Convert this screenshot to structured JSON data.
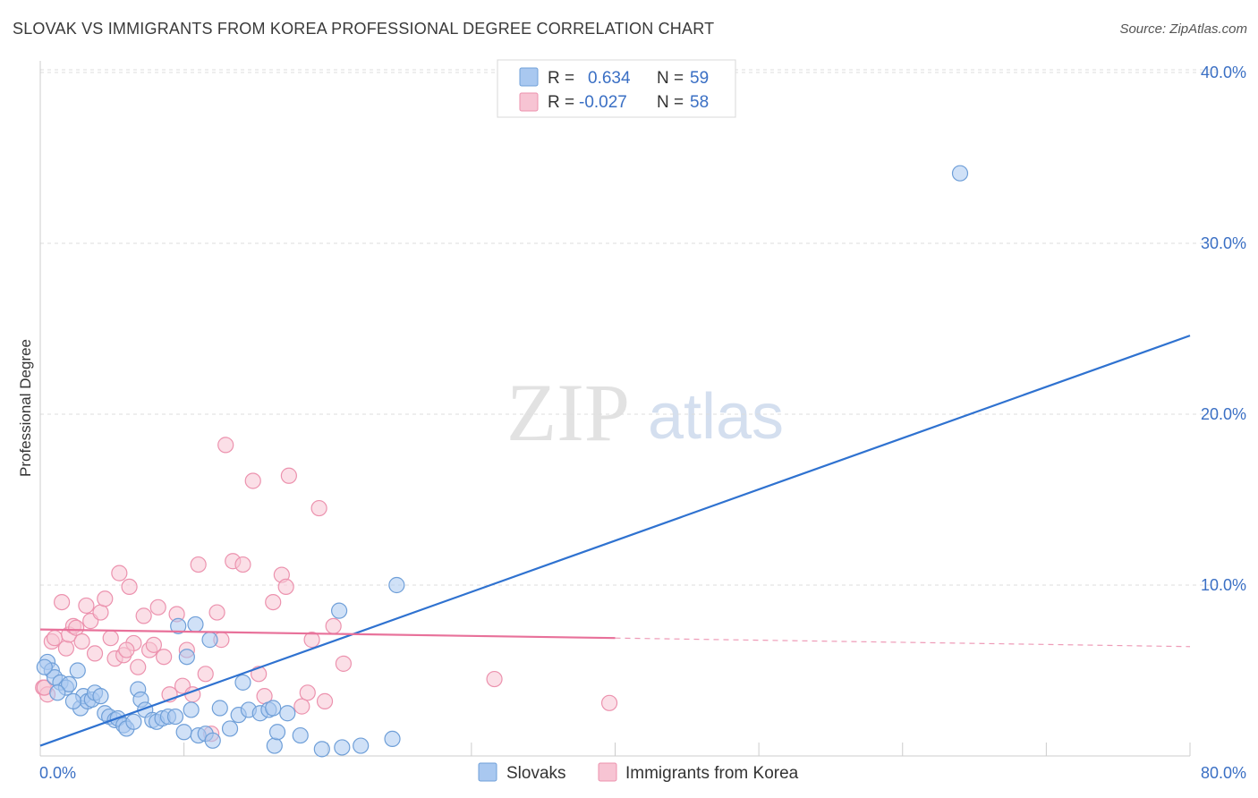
{
  "title": "SLOVAK VS IMMIGRANTS FROM KOREA PROFESSIONAL DEGREE CORRELATION CHART",
  "source": "Source: ZipAtlas.com",
  "watermark_zip": "ZIP",
  "watermark_atlas": "atlas",
  "colors": {
    "blue_fill": "#a9c8f0",
    "blue_stroke": "#6f9fd8",
    "blue_line": "#2f72d0",
    "pink_fill": "#f7c4d3",
    "pink_stroke": "#ec92ae",
    "pink_line": "#e8719a",
    "tick_text": "#3a6fc4",
    "grid": "#dddddd"
  },
  "legend": {
    "row1": {
      "r_label": "R =",
      "r_value": "0.634",
      "n_label": "N =",
      "n_value": "59"
    },
    "row2": {
      "r_label": "R =",
      "r_value": "-0.027",
      "n_label": "N =",
      "n_value": "58"
    }
  },
  "bottom_legend": {
    "series1": "Slovaks",
    "series2": "Immigrants from Korea"
  },
  "chart_data": {
    "type": "scatter",
    "title": "SLOVAK VS IMMIGRANTS FROM KOREA PROFESSIONAL DEGREE CORRELATION CHART",
    "xlabel": "",
    "ylabel": "Professional Degree",
    "xlim": [
      0,
      80
    ],
    "ylim": [
      0,
      42
    ],
    "x_tick_labels": [
      "0.0%",
      "80.0%"
    ],
    "y_ticks": [
      10,
      20,
      30,
      40
    ],
    "y_tick_labels": [
      "10.0%",
      "20.0%",
      "30.0%",
      "40.0%"
    ],
    "series": [
      {
        "name": "Slovaks",
        "r": 0.634,
        "n": 59,
        "trend": {
          "x": [
            0,
            80
          ],
          "y": [
            0.6,
            24.6
          ]
        },
        "points": [
          [
            0.5,
            5.5
          ],
          [
            0.8,
            5.0
          ],
          [
            1.0,
            4.6
          ],
          [
            1.4,
            4.3
          ],
          [
            1.8,
            4.0
          ],
          [
            2.0,
            4.2
          ],
          [
            1.2,
            3.7
          ],
          [
            2.6,
            5.0
          ],
          [
            2.8,
            2.8
          ],
          [
            3.0,
            3.5
          ],
          [
            3.3,
            3.2
          ],
          [
            3.6,
            3.3
          ],
          [
            3.8,
            3.7
          ],
          [
            4.2,
            3.5
          ],
          [
            4.5,
            2.5
          ],
          [
            4.8,
            2.3
          ],
          [
            5.2,
            2.1
          ],
          [
            5.4,
            2.2
          ],
          [
            5.8,
            1.8
          ],
          [
            6.0,
            1.6
          ],
          [
            6.5,
            2.0
          ],
          [
            6.8,
            3.9
          ],
          [
            7.0,
            3.3
          ],
          [
            7.3,
            2.7
          ],
          [
            7.8,
            2.1
          ],
          [
            8.1,
            2.0
          ],
          [
            8.5,
            2.2
          ],
          [
            8.9,
            2.3
          ],
          [
            9.4,
            2.3
          ],
          [
            10.0,
            1.4
          ],
          [
            10.5,
            2.7
          ],
          [
            11.0,
            1.2
          ],
          [
            11.5,
            1.3
          ],
          [
            12.0,
            0.9
          ],
          [
            12.5,
            2.8
          ],
          [
            13.2,
            1.6
          ],
          [
            13.8,
            2.4
          ],
          [
            14.5,
            2.7
          ],
          [
            15.3,
            2.5
          ],
          [
            15.9,
            2.7
          ],
          [
            16.3,
            0.6
          ],
          [
            16.5,
            1.4
          ],
          [
            17.2,
            2.5
          ],
          [
            18.1,
            1.2
          ],
          [
            19.6,
            0.4
          ],
          [
            21.0,
            0.5
          ],
          [
            22.3,
            0.6
          ],
          [
            24.5,
            1.0
          ],
          [
            9.6,
            7.6
          ],
          [
            10.8,
            7.7
          ],
          [
            11.8,
            6.8
          ],
          [
            10.2,
            5.8
          ],
          [
            14.1,
            4.3
          ],
          [
            16.2,
            2.8
          ],
          [
            20.8,
            8.5
          ],
          [
            24.8,
            10.0
          ],
          [
            64.0,
            34.1
          ],
          [
            0.3,
            5.2
          ],
          [
            2.3,
            3.2
          ]
        ]
      },
      {
        "name": "Immigrants from Korea",
        "r": -0.027,
        "n": 58,
        "trend": {
          "x": [
            0,
            40
          ],
          "y": [
            7.4,
            6.9
          ]
        },
        "trend_dashed": {
          "x": [
            40,
            80
          ],
          "y": [
            6.9,
            6.4
          ]
        },
        "points": [
          [
            0.2,
            4.0
          ],
          [
            0.5,
            3.6
          ],
          [
            0.8,
            6.7
          ],
          [
            1.0,
            6.9
          ],
          [
            1.5,
            9.0
          ],
          [
            1.8,
            6.3
          ],
          [
            2.0,
            7.1
          ],
          [
            2.3,
            7.6
          ],
          [
            2.5,
            7.5
          ],
          [
            2.9,
            6.7
          ],
          [
            3.2,
            8.8
          ],
          [
            3.5,
            7.9
          ],
          [
            3.8,
            6.0
          ],
          [
            4.2,
            8.4
          ],
          [
            4.5,
            9.2
          ],
          [
            4.9,
            6.9
          ],
          [
            5.2,
            5.7
          ],
          [
            5.5,
            10.7
          ],
          [
            5.8,
            5.9
          ],
          [
            6.2,
            9.9
          ],
          [
            6.5,
            6.6
          ],
          [
            6.8,
            5.2
          ],
          [
            7.2,
            8.2
          ],
          [
            7.6,
            6.2
          ],
          [
            7.9,
            6.5
          ],
          [
            8.2,
            8.7
          ],
          [
            8.6,
            5.8
          ],
          [
            9.0,
            3.6
          ],
          [
            9.5,
            8.3
          ],
          [
            9.9,
            4.1
          ],
          [
            10.2,
            6.2
          ],
          [
            10.6,
            3.6
          ],
          [
            11.0,
            11.2
          ],
          [
            11.5,
            4.8
          ],
          [
            11.9,
            1.3
          ],
          [
            12.3,
            8.4
          ],
          [
            12.6,
            6.8
          ],
          [
            12.9,
            18.2
          ],
          [
            13.4,
            11.4
          ],
          [
            14.1,
            11.2
          ],
          [
            14.8,
            16.1
          ],
          [
            15.2,
            4.8
          ],
          [
            15.6,
            3.5
          ],
          [
            16.2,
            9.0
          ],
          [
            16.8,
            10.6
          ],
          [
            17.1,
            9.9
          ],
          [
            17.3,
            16.4
          ],
          [
            18.2,
            2.9
          ],
          [
            18.6,
            3.7
          ],
          [
            18.9,
            6.8
          ],
          [
            19.4,
            14.5
          ],
          [
            19.8,
            3.2
          ],
          [
            20.4,
            7.6
          ],
          [
            21.1,
            5.4
          ],
          [
            31.6,
            4.5
          ],
          [
            39.6,
            3.1
          ],
          [
            6.0,
            6.2
          ],
          [
            0.3,
            4.0
          ]
        ]
      }
    ]
  }
}
